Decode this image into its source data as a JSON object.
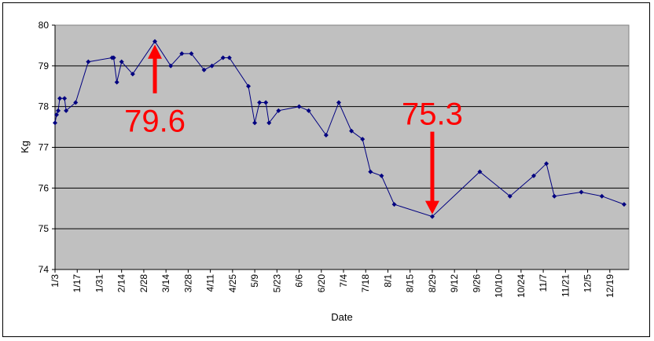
{
  "chart_data": {
    "type": "line",
    "title": "",
    "xlabel": "Date",
    "ylabel": "Kg",
    "ylim": [
      74,
      80
    ],
    "yticks": [
      "74",
      "75",
      "76",
      "77",
      "78",
      "79",
      "80"
    ],
    "xticks": [
      "1/3",
      "1/17",
      "1/31",
      "2/14",
      "2/28",
      "3/14",
      "3/28",
      "4/11",
      "4/25",
      "5/9",
      "5/23",
      "6/6",
      "6/20",
      "7/4",
      "7/18",
      "8/1",
      "8/15",
      "8/29",
      "9/12",
      "9/26",
      "10/10",
      "10/24",
      "11/7",
      "11/21",
      "12/5",
      "12/19"
    ],
    "grid": "horizontal",
    "legend": "none",
    "plot_background": "#c0c0c0",
    "series_color": "#000080",
    "annotation_color": "#ff0000",
    "series": [
      {
        "x": [
          "1/3",
          "1/4",
          "1/5",
          "1/6",
          "1/9",
          "1/10",
          "1/16",
          "1/24",
          "2/8",
          "2/9",
          "2/11",
          "2/14",
          "2/21",
          "3/7",
          "3/17",
          "3/24",
          "3/30",
          "4/7",
          "4/12",
          "4/19",
          "4/23",
          "5/5",
          "5/9",
          "5/12",
          "5/16",
          "5/18",
          "5/24",
          "6/6",
          "6/12",
          "6/23",
          "7/1",
          "7/9",
          "7/16",
          "7/21",
          "7/28",
          "8/5",
          "8/29",
          "9/28",
          "10/17",
          "11/1",
          "11/9",
          "11/14",
          "12/1",
          "12/14",
          "12/28"
        ],
        "values": [
          77.6,
          77.8,
          77.9,
          78.2,
          78.2,
          77.9,
          78.1,
          79.1,
          79.2,
          79.2,
          78.6,
          79.1,
          78.8,
          79.6,
          79.0,
          79.3,
          79.3,
          78.9,
          79.0,
          79.2,
          79.2,
          78.5,
          77.6,
          78.1,
          78.1,
          77.6,
          77.9,
          78.0,
          77.9,
          77.3,
          78.1,
          77.4,
          77.2,
          76.4,
          76.3,
          75.6,
          75.3,
          76.4,
          75.8,
          76.3,
          76.6,
          75.8,
          75.9,
          75.8,
          75.6
        ]
      }
    ],
    "annotations": [
      {
        "text": "79.6",
        "x": "3/7",
        "value": 79.6,
        "arrow": "up"
      },
      {
        "text": "75.3",
        "x": "8/29",
        "value": 75.3,
        "arrow": "down"
      }
    ]
  }
}
